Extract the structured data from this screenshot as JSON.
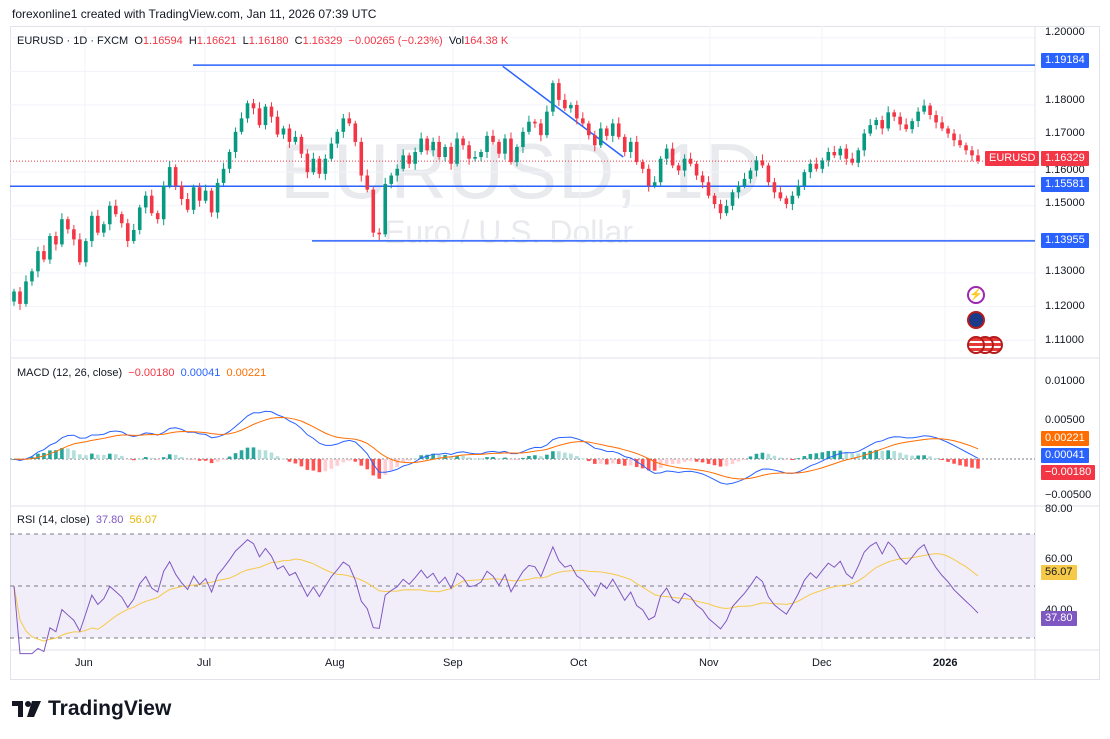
{
  "credit": "forexonline1 created with TradingView.com, Jan 11, 2026 07:39 UTC",
  "watermark": {
    "symbol": "EURUSD, 1D",
    "description": "Euro / U.S. Dollar"
  },
  "legend": {
    "symbol": "EURUSD · 1D · FXCM",
    "o_label": "O",
    "o": "1.16594",
    "h_label": "H",
    "h": "1.16621",
    "l_label": "L",
    "l": "1.16180",
    "c_label": "C",
    "c": "1.16329",
    "change": "−0.00265 (−0.23%)",
    "vol_label": "Vol",
    "vol": "164.38 K"
  },
  "macd_legend": {
    "title": "MACD (12, 26, close)",
    "hist": "−0.00180",
    "macd": "0.00041",
    "signal": "0.00221"
  },
  "rsi_legend": {
    "title": "RSI (14, close)",
    "rsi": "37.80",
    "ma": "56.07"
  },
  "price_axis": [
    "1.20000",
    "1.18000",
    "1.17000",
    "1.16000",
    "1.15000",
    "1.13000",
    "1.12000",
    "1.11000"
  ],
  "macd_axis": [
    "0.01000",
    "0.00500",
    "−0.00500"
  ],
  "rsi_axis": [
    "80.00",
    "60.00",
    "40.00"
  ],
  "price_tags": {
    "level_top": "1.19184",
    "symbol_tag": "EURUSD",
    "last": "1.16329",
    "level_mid": "1.15581",
    "level_low": "1.13955",
    "macd_signal": "0.00221",
    "macd_line": "0.00041",
    "macd_hist": "−0.00180",
    "rsi_ma": "56.07",
    "rsi": "37.80"
  },
  "time_axis": [
    "Jun",
    "Jul",
    "Aug",
    "Sep",
    "Oct",
    "Nov",
    "Dec",
    "2026"
  ],
  "brand": "TradingView",
  "colors": {
    "up": "#089981",
    "down": "#f23645",
    "line": "#2962ff",
    "signal": "#ff6d00",
    "rsi": "#7e57c2",
    "rsi_ma": "#f7c948"
  },
  "chart_data": {
    "type": "candlestick",
    "title": "EURUSD · 1D · FXCM",
    "ylim": [
      1.105,
      1.202
    ],
    "x_range": [
      "May 2025",
      "Jan 2026"
    ],
    "horizontal_levels": [
      1.19184,
      1.15581,
      1.13955
    ],
    "trendline": [
      {
        "x": 0.507,
        "y": 1.1915
      },
      {
        "x": 0.632,
        "y": 1.1645
      }
    ],
    "last_close": 1.16329,
    "closes": [
      1.1245,
      1.1208,
      1.1275,
      1.1305,
      1.1365,
      1.134,
      1.141,
      1.1385,
      1.146,
      1.143,
      1.14,
      1.1332,
      1.1395,
      1.147,
      1.142,
      1.1445,
      1.15,
      1.1475,
      1.1448,
      1.1395,
      1.1428,
      1.1495,
      1.153,
      1.1478,
      1.146,
      1.156,
      1.1615,
      1.156,
      1.152,
      1.1488,
      1.1555,
      1.1515,
      1.1545,
      1.148,
      1.1568,
      1.161,
      1.166,
      1.172,
      1.176,
      1.1805,
      1.179,
      1.174,
      1.1795,
      1.1765,
      1.1712,
      1.173,
      1.169,
      1.1705,
      1.1655,
      1.16,
      1.164,
      1.1595,
      1.164,
      1.1685,
      1.172,
      1.176,
      1.1745,
      1.169,
      1.159,
      1.1548,
      1.142,
      1.1415,
      1.1565,
      1.159,
      1.161,
      1.165,
      1.1625,
      1.166,
      1.17,
      1.1665,
      1.169,
      1.1645,
      1.1675,
      1.1625,
      1.17,
      1.168,
      1.164,
      1.1645,
      1.166,
      1.1708,
      1.169,
      1.1655,
      1.17,
      1.163,
      1.1675,
      1.172,
      1.175,
      1.1745,
      1.171,
      1.178,
      1.1865,
      1.1815,
      1.179,
      1.18,
      1.176,
      1.1745,
      1.171,
      1.168,
      1.173,
      1.1708,
      1.1745,
      1.1705,
      1.166,
      1.169,
      1.163,
      1.161,
      1.156,
      1.157,
      1.164,
      1.167,
      1.162,
      1.1605,
      1.164,
      1.1625,
      1.159,
      1.157,
      1.153,
      1.1505,
      1.1478,
      1.15,
      1.154,
      1.156,
      1.158,
      1.1605,
      1.1635,
      1.162,
      1.157,
      1.154,
      1.1522,
      1.1505,
      1.153,
      1.156,
      1.16,
      1.1625,
      1.161,
      1.1635,
      1.166,
      1.165,
      1.167,
      1.164,
      1.1628,
      1.1665,
      1.1715,
      1.174,
      1.1755,
      1.173,
      1.1778,
      1.1765,
      1.1742,
      1.1728,
      1.1752,
      1.178,
      1.1798,
      1.177,
      1.1748,
      1.173,
      1.1715,
      1.1695,
      1.168,
      1.1665,
      1.165,
      1.1633
    ]
  }
}
